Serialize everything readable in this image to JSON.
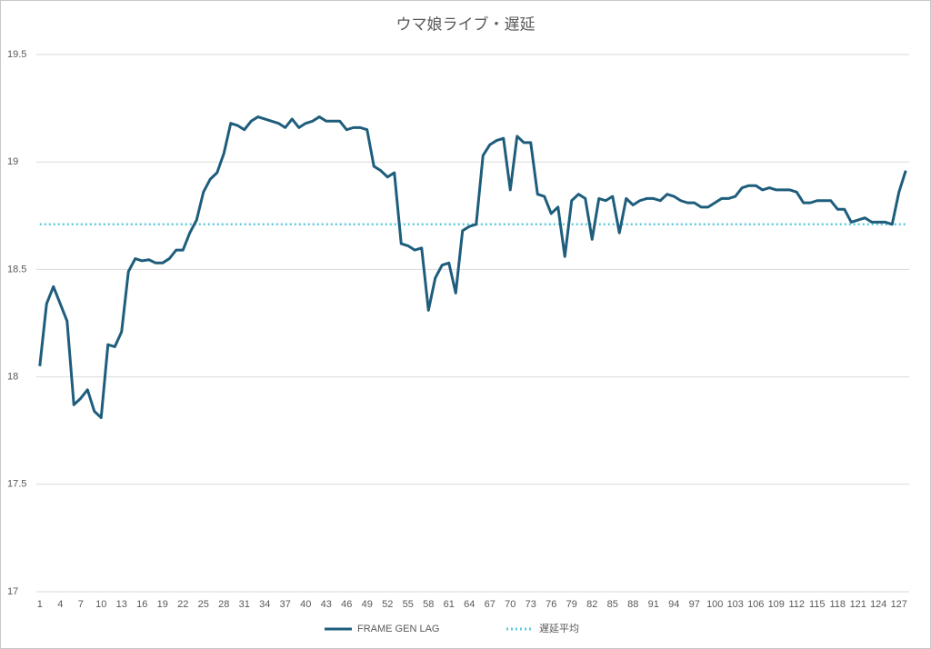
{
  "chart_data": {
    "type": "line",
    "title": "ウマ娘ライブ・遅延",
    "categories": [
      1,
      null,
      null,
      4,
      null,
      null,
      7,
      null,
      null,
      10,
      null,
      null,
      13,
      null,
      null,
      16,
      null,
      null,
      19,
      null,
      null,
      22,
      null,
      null,
      25,
      null,
      null,
      28,
      null,
      null,
      31,
      null,
      null,
      34,
      null,
      null,
      37,
      null,
      null,
      40,
      null,
      null,
      43,
      null,
      null,
      46,
      null,
      null,
      49,
      null,
      null,
      52,
      null,
      null,
      55,
      null,
      null,
      58,
      null,
      null,
      61,
      null,
      null,
      64,
      null,
      null,
      67,
      null,
      null,
      70,
      null,
      null,
      73,
      null,
      null,
      76,
      null,
      null,
      79,
      null,
      null,
      82,
      null,
      null,
      85,
      null,
      null,
      88,
      null,
      null,
      91,
      null,
      null,
      94,
      null,
      null,
      97,
      null,
      null,
      100,
      null,
      null,
      103,
      null,
      null,
      106,
      null,
      null,
      109,
      null,
      null,
      112,
      null,
      null,
      115,
      null,
      null,
      118,
      null,
      null,
      121,
      null,
      null,
      124,
      null,
      null,
      127,
      null
    ],
    "series": [
      {
        "name": "FRAME GEN LAG",
        "color": "#1e5d7c",
        "style": "solid",
        "values": [
          18.05,
          18.34,
          18.42,
          18.34,
          18.26,
          17.87,
          17.9,
          17.94,
          17.84,
          17.81,
          18.15,
          18.14,
          18.21,
          18.49,
          18.55,
          18.54,
          18.545,
          18.53,
          18.53,
          18.55,
          18.59,
          18.59,
          18.67,
          18.73,
          18.86,
          18.92,
          18.95,
          19.04,
          19.18,
          19.17,
          19.15,
          19.19,
          19.21,
          19.2,
          19.19,
          19.18,
          19.16,
          19.2,
          19.16,
          19.18,
          19.19,
          19.21,
          19.19,
          19.19,
          19.19,
          19.15,
          19.16,
          19.16,
          19.15,
          18.98,
          18.96,
          18.93,
          18.95,
          18.62,
          18.61,
          18.59,
          18.6,
          18.31,
          18.46,
          18.52,
          18.53,
          18.39,
          18.68,
          18.7,
          18.71,
          19.03,
          19.08,
          19.1,
          19.11,
          18.87,
          19.12,
          19.09,
          19.09,
          18.85,
          18.84,
          18.76,
          18.79,
          18.56,
          18.82,
          18.85,
          18.83,
          18.64,
          18.83,
          18.82,
          18.84,
          18.67,
          18.83,
          18.8,
          18.82,
          18.83,
          18.83,
          18.82,
          18.85,
          18.84,
          18.82,
          18.81,
          18.81,
          18.79,
          18.79,
          18.81,
          18.83,
          18.83,
          18.84,
          18.88,
          18.89,
          18.89,
          18.87,
          18.88,
          18.87,
          18.87,
          18.87,
          18.86,
          18.81,
          18.81,
          18.82,
          18.82,
          18.82,
          18.78,
          18.78,
          18.72,
          18.73,
          18.74,
          18.72,
          18.72,
          18.72,
          18.71,
          18.86,
          18.96
        ]
      },
      {
        "name": "遅延平均",
        "color": "#5ecbdc",
        "style": "dotted",
        "values": [
          18.71,
          18.71,
          18.71,
          18.71,
          18.71,
          18.71,
          18.71,
          18.71,
          18.71,
          18.71,
          18.71,
          18.71,
          18.71,
          18.71,
          18.71,
          18.71,
          18.71,
          18.71,
          18.71,
          18.71,
          18.71,
          18.71,
          18.71,
          18.71,
          18.71,
          18.71,
          18.71,
          18.71,
          18.71,
          18.71,
          18.71,
          18.71,
          18.71,
          18.71,
          18.71,
          18.71,
          18.71,
          18.71,
          18.71,
          18.71,
          18.71,
          18.71,
          18.71,
          18.71,
          18.71,
          18.71,
          18.71,
          18.71,
          18.71,
          18.71,
          18.71,
          18.71,
          18.71,
          18.71,
          18.71,
          18.71,
          18.71,
          18.71,
          18.71,
          18.71,
          18.71,
          18.71,
          18.71,
          18.71,
          18.71,
          18.71,
          18.71,
          18.71,
          18.71,
          18.71,
          18.71,
          18.71,
          18.71,
          18.71,
          18.71,
          18.71,
          18.71,
          18.71,
          18.71,
          18.71,
          18.71,
          18.71,
          18.71,
          18.71,
          18.71,
          18.71,
          18.71,
          18.71,
          18.71,
          18.71,
          18.71,
          18.71,
          18.71,
          18.71,
          18.71,
          18.71,
          18.71,
          18.71,
          18.71,
          18.71,
          18.71,
          18.71,
          18.71,
          18.71,
          18.71,
          18.71,
          18.71,
          18.71,
          18.71,
          18.71,
          18.71,
          18.71,
          18.71,
          18.71,
          18.71,
          18.71,
          18.71,
          18.71,
          18.71,
          18.71,
          18.71,
          18.71,
          18.71,
          18.71,
          18.71,
          18.71,
          18.71,
          18.71
        ]
      }
    ],
    "ylim": [
      17,
      19.5
    ],
    "yticks": [
      17,
      17.5,
      18,
      18.5,
      19,
      19.5
    ],
    "grid": true,
    "legend": "bottom"
  }
}
